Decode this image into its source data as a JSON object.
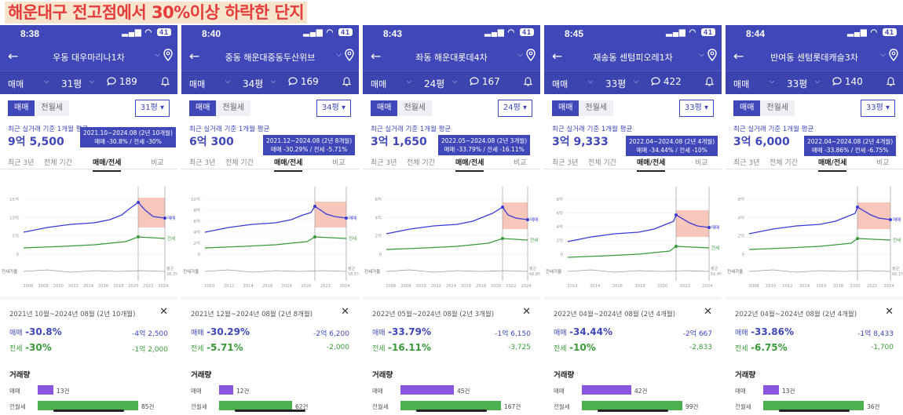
{
  "banner_title": "해운대구 전고점에서 30%이상 하락한 단지",
  "colors": {
    "brand": "#3f47b9",
    "sale": "#3f47b9",
    "rent": "#3a9a3a",
    "drop": "#f4b4a4",
    "banner": "#e53b3b"
  },
  "common": {
    "filter_type": "매매",
    "toggle_on": "매매",
    "toggle_off": "전월세",
    "avg_label": "최근 실거래 기준 1개월 평균",
    "tab_3y": "최근 3년",
    "tab_all": "전체 기간",
    "tab_salerent": "매매/전세",
    "tab_compare": "비교",
    "sale_label": "매매",
    "rent_label": "전세",
    "volume_title": "거래량",
    "vol_sale_label": "매매",
    "vol_rent_label": "전월세",
    "rent_axis_label": "전세가율",
    "avg_axis_label": "평균",
    "close_icon": "✕",
    "back_icon": "←",
    "bell_icon": "bell-icon",
    "pin_icon": "location-pin-icon",
    "comment_icon": "comment-icon",
    "legend_sale": "매매",
    "legend_rent": "전세"
  },
  "phones": [
    {
      "time": "8:38",
      "battery": "41",
      "complex": "우동 대우마리나1차",
      "size": "31평",
      "comments": "189",
      "avg_price": "9억 5,500",
      "tooltip_line1": "2021.10~2024.08 (2년 10개월)",
      "tooltip_line2": "매매 -30.8% / 전세 -30%",
      "period": "2021년 10월~2024년 08월 (2년 10개월)",
      "sale_pct": "-30.8%",
      "sale_amt": "-4억 2,500",
      "rent_pct": "-30%",
      "rent_amt": "-1억 2,000",
      "vol_sale": "13건",
      "vol_rent": "85건",
      "vol_sale_frac": 0.13,
      "vol_rent_frac": 0.85,
      "rent_ratio": "38.3%",
      "y_ticks": [
        "15억",
        "10억",
        "5억",
        "0"
      ],
      "x_ticks": [
        "2006",
        "2008",
        "2010",
        "2012",
        "2014",
        "2016",
        "2018",
        "2020",
        "2022",
        "2024"
      ]
    },
    {
      "time": "8:40",
      "battery": "41",
      "complex": "중동 해운대중동두산위브",
      "size": "34평",
      "comments": "169",
      "avg_price": "6억 300",
      "tooltip_line1": "2021.12~2024.08 (2년 8개월)",
      "tooltip_line2": "매매 -30.29% / 전세 -5.71%",
      "period": "2021년 12월~2024년 08월 (2년 8개월)",
      "sale_pct": "-30.29%",
      "sale_amt": "-2억 6,200",
      "rent_pct": "-5.71%",
      "rent_amt": "-2,000",
      "vol_sale": "12건",
      "vol_rent": "62건",
      "vol_sale_frac": 0.12,
      "vol_rent_frac": 0.62,
      "rent_ratio": "58.5%",
      "y_ticks": [
        "10억",
        "8억",
        "6억",
        "4억",
        "2억",
        "0"
      ],
      "x_ticks": [
        "2010",
        "2012",
        "2014",
        "2016",
        "2018",
        "2020",
        "2022",
        "2024"
      ]
    },
    {
      "time": "8:43",
      "battery": "41",
      "complex": "좌동 해운대롯데4차",
      "size": "24평",
      "comments": "167",
      "avg_price": "3억 1,650",
      "tooltip_line1": "2022.05~2024.08 (2년 3개월)",
      "tooltip_line2": "매매 -33.79% / 전세 -16.11%",
      "period": "2022년 05월~2024년 08월 (2년 3개월)",
      "sale_pct": "-33.79%",
      "sale_amt": "-1억 6,150",
      "rent_pct": "-16.11%",
      "rent_amt": "-3,725",
      "vol_sale": "45건",
      "vol_rent": "167건",
      "vol_sale_frac": 0.45,
      "vol_rent_frac": 0.85,
      "rent_ratio": "66.8%",
      "y_ticks": [
        "6억",
        "4억",
        "2억",
        "0"
      ],
      "x_ticks": [
        "2006",
        "2008",
        "2010",
        "2012",
        "2014",
        "2016",
        "2018",
        "2020",
        "2022",
        "2024"
      ]
    },
    {
      "time": "8:45",
      "battery": "41",
      "complex": "재송동 센텀피오레1차",
      "size": "33평",
      "comments": "422",
      "avg_price": "3억 9,333",
      "tooltip_line1": "2022.04~2024.08 (2년 4개월)",
      "tooltip_line2": "매매 -34.44% / 전세 -10%",
      "period": "2022년 04월~2024년 08월 (2년 4개월)",
      "sale_pct": "-34.44%",
      "sale_amt": "-2억 667",
      "rent_pct": "-10%",
      "rent_amt": "-2,833",
      "vol_sale": "42건",
      "vol_rent": "99건",
      "vol_sale_frac": 0.42,
      "vol_rent_frac": 0.85,
      "rent_ratio": "59.4%",
      "y_ticks": [
        "8억",
        "6억",
        "4억",
        "2억",
        "0"
      ],
      "x_ticks": [
        "2012",
        "2014",
        "2016",
        "2018",
        "2020",
        "2022",
        "2024"
      ]
    },
    {
      "time": "8:44",
      "battery": "41",
      "complex": "반여동 센텀롯데캐슬3차",
      "size": "33평",
      "comments": "140",
      "avg_price": "3억 6,000",
      "tooltip_line1": "2022.04~2024.08 (2년 4개월)",
      "tooltip_line2": "매매 -33.86% / 전세 -6.75%",
      "period": "2022년 04월~2024년 08월 (2년 4개월)",
      "sale_pct": "-33.86%",
      "sale_amt": "-1억 8,433",
      "rent_pct": "-6.75%",
      "rent_amt": "-1,700",
      "vol_sale": "13건",
      "vol_rent": "36건",
      "vol_sale_frac": 0.13,
      "vol_rent_frac": 0.85,
      "rent_ratio": "66.1%",
      "y_ticks": [
        "6억",
        "4억",
        "2억",
        "0"
      ],
      "x_ticks": [
        "2008",
        "2010",
        "2012",
        "2014",
        "2016",
        "2018",
        "2020",
        "2022",
        "2024"
      ]
    }
  ]
}
